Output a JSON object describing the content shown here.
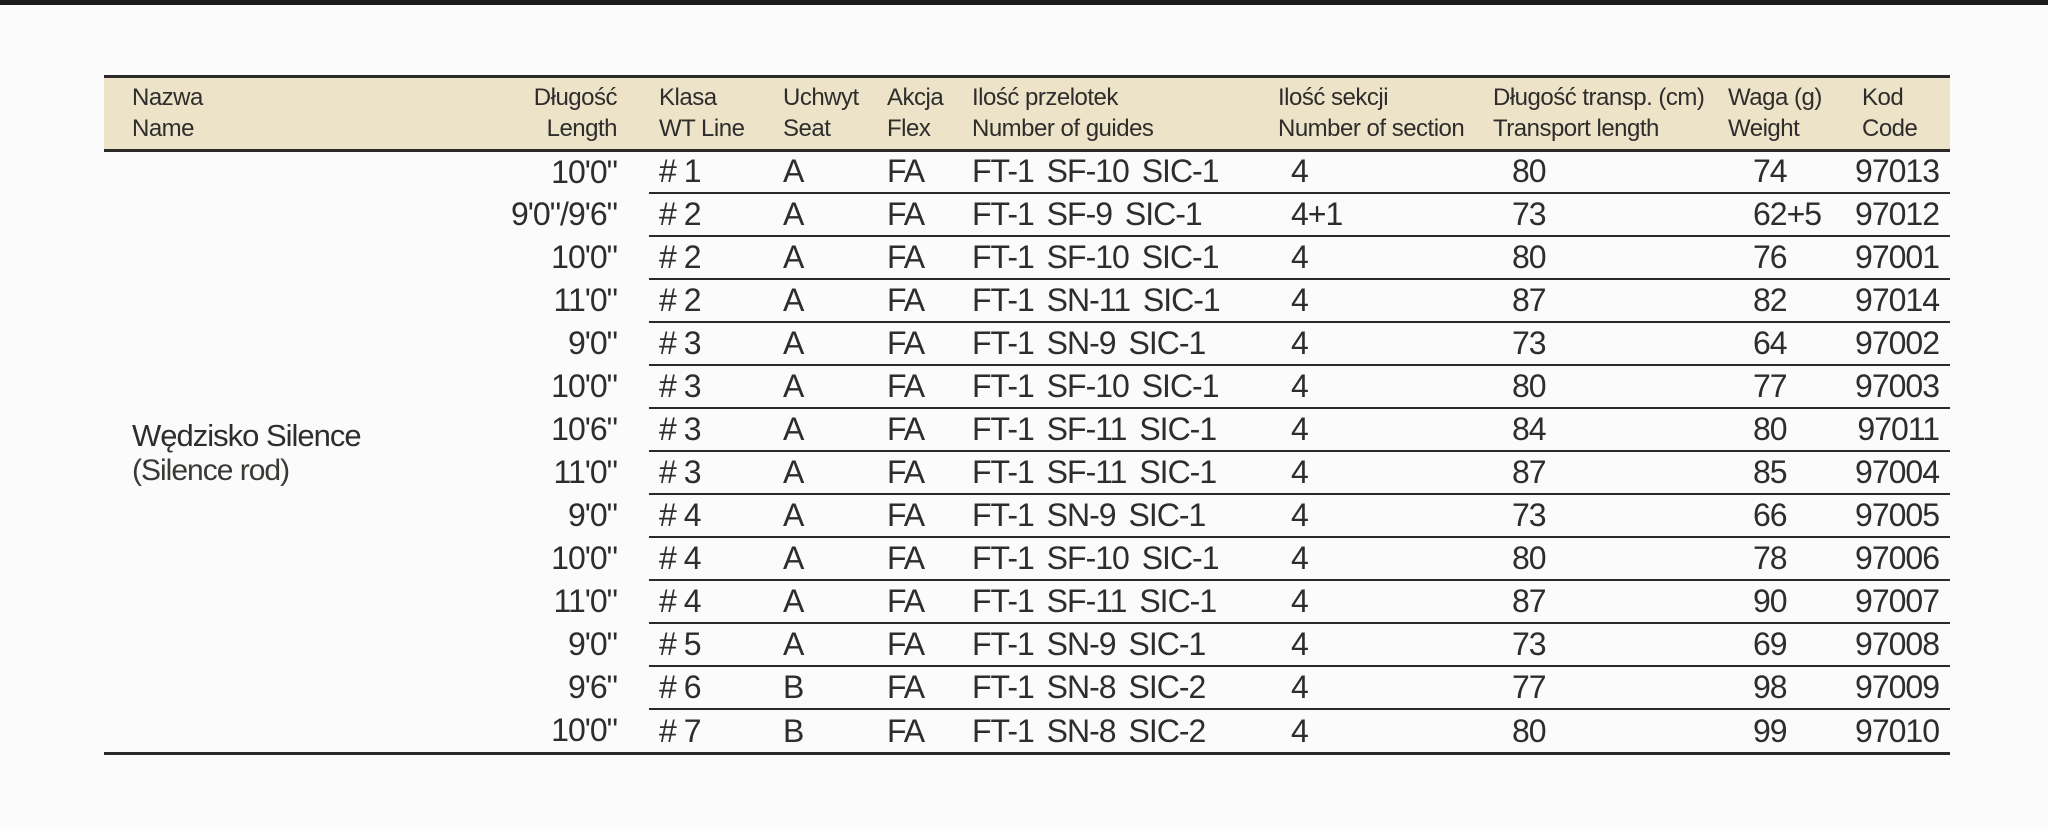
{
  "page": {
    "background": "#fbfbfb",
    "top_bar_color": "#1b1b1b",
    "header_bg": "#ece3c9",
    "line_color": "#2b2a28",
    "text_color": "#2e2d2b"
  },
  "table": {
    "columns": [
      {
        "key": "name",
        "pl": "Nazwa",
        "en": "Name"
      },
      {
        "key": "length",
        "pl": "Długość",
        "en": "Length"
      },
      {
        "key": "wt_line",
        "pl": "Klasa",
        "en": "WT Line"
      },
      {
        "key": "seat",
        "pl": "Uchwyt",
        "en": "Seat"
      },
      {
        "key": "flex",
        "pl": "Akcja",
        "en": "Flex"
      },
      {
        "key": "guides",
        "pl": "Ilość przelotek",
        "en": "Number of guides"
      },
      {
        "key": "sections",
        "pl": "Ilość sekcji",
        "en": "Number of section"
      },
      {
        "key": "transport",
        "pl": "Długość transp. (cm)",
        "en": "Transport length"
      },
      {
        "key": "weight",
        "pl": "Waga (g)",
        "en": "Weight"
      },
      {
        "key": "code",
        "pl": "Kod",
        "en": "Code"
      }
    ],
    "product": {
      "name_pl": "Wędzisko Silence",
      "name_en": "(Silence rod)"
    },
    "rows": [
      {
        "length": "10'0\"",
        "wt_line": "# 1",
        "seat": "A",
        "flex": "FA",
        "guides": "FT-1 SF-10 SIC-1",
        "sections": "4",
        "transport": "80",
        "weight": "74",
        "code": "97013"
      },
      {
        "length": "9'0\"/9'6\"",
        "wt_line": "# 2",
        "seat": "A",
        "flex": "FA",
        "guides": "FT-1 SF-9 SIC-1",
        "sections": "4+1",
        "transport": "73",
        "weight": "62+5",
        "code": "97012"
      },
      {
        "length": "10'0\"",
        "wt_line": "# 2",
        "seat": "A",
        "flex": "FA",
        "guides": "FT-1 SF-10 SIC-1",
        "sections": "4",
        "transport": "80",
        "weight": "76",
        "code": "97001"
      },
      {
        "length": "11'0\"",
        "wt_line": "# 2",
        "seat": "A",
        "flex": "FA",
        "guides": "FT-1 SN-11 SIC-1",
        "sections": "4",
        "transport": "87",
        "weight": "82",
        "code": "97014"
      },
      {
        "length": "9'0\"",
        "wt_line": "# 3",
        "seat": "A",
        "flex": "FA",
        "guides": "FT-1 SN-9 SIC-1",
        "sections": "4",
        "transport": "73",
        "weight": "64",
        "code": "97002"
      },
      {
        "length": "10'0\"",
        "wt_line": "# 3",
        "seat": "A",
        "flex": "FA",
        "guides": "FT-1 SF-10 SIC-1",
        "sections": "4",
        "transport": "80",
        "weight": "77",
        "code": "97003"
      },
      {
        "length": "10'6\"",
        "wt_line": "# 3",
        "seat": "A",
        "flex": "FA",
        "guides": "FT-1 SF-11 SIC-1",
        "sections": "4",
        "transport": "84",
        "weight": "80",
        "code": "97011"
      },
      {
        "length": "11'0\"",
        "wt_line": "# 3",
        "seat": "A",
        "flex": "FA",
        "guides": "FT-1 SF-11 SIC-1",
        "sections": "4",
        "transport": "87",
        "weight": "85",
        "code": "97004"
      },
      {
        "length": "9'0\"",
        "wt_line": "# 4",
        "seat": "A",
        "flex": "FA",
        "guides": "FT-1 SN-9 SIC-1",
        "sections": "4",
        "transport": "73",
        "weight": "66",
        "code": "97005"
      },
      {
        "length": "10'0\"",
        "wt_line": "# 4",
        "seat": "A",
        "flex": "FA",
        "guides": "FT-1 SF-10 SIC-1",
        "sections": "4",
        "transport": "80",
        "weight": "78",
        "code": "97006"
      },
      {
        "length": "11'0\"",
        "wt_line": "# 4",
        "seat": "A",
        "flex": "FA",
        "guides": "FT-1 SF-11 SIC-1",
        "sections": "4",
        "transport": "87",
        "weight": "90",
        "code": "97007"
      },
      {
        "length": "9'0\"",
        "wt_line": "# 5",
        "seat": "A",
        "flex": "FA",
        "guides": "FT-1 SN-9 SIC-1",
        "sections": "4",
        "transport": "73",
        "weight": "69",
        "code": "97008"
      },
      {
        "length": "9'6\"",
        "wt_line": "# 6",
        "seat": "B",
        "flex": "FA",
        "guides": "FT-1 SN-8 SIC-2",
        "sections": "4",
        "transport": "77",
        "weight": "98",
        "code": "97009"
      },
      {
        "length": "10'0\"",
        "wt_line": "# 7",
        "seat": "B",
        "flex": "FA",
        "guides": "FT-1 SN-8 SIC-2",
        "sections": "4",
        "transport": "80",
        "weight": "99",
        "code": "97010"
      }
    ]
  }
}
